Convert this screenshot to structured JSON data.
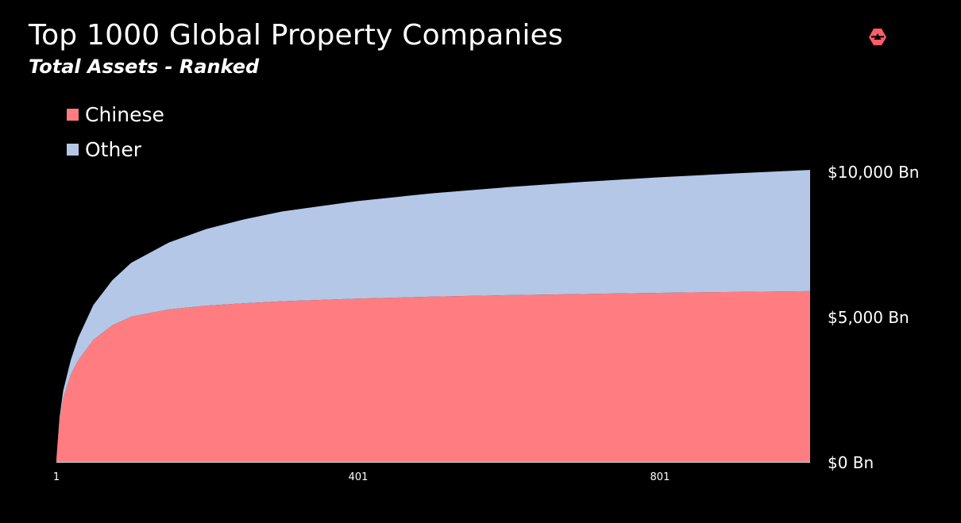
{
  "title": "Top 1000 Global Property Companies",
  "subtitle": "Total Assets - Ranked",
  "logo": {
    "icon": "brand-logo-icon",
    "color": "#ff5c6a"
  },
  "legend": [
    {
      "label": "Chinese",
      "color": "#ff7d80"
    },
    {
      "label": "Other",
      "color": "#b4c7e7"
    }
  ],
  "chart_data": {
    "type": "area",
    "stacked": true,
    "cumulative": true,
    "title": "Top 1000 Global Property Companies",
    "subtitle": "Total Assets - Ranked",
    "xlabel": "",
    "ylabel": "",
    "x_ticks": [
      "1",
      "401",
      "801"
    ],
    "y_ticks": [
      "$0 Bn",
      "$5,000 Bn",
      "$10,000 Bn"
    ],
    "y_tick_values": [
      0,
      5000,
      10000
    ],
    "ylim": [
      0,
      10000
    ],
    "xlim": [
      1,
      1000
    ],
    "grid": false,
    "legend_position": "top-left",
    "y_axis_side": "right",
    "x": [
      1,
      5,
      10,
      20,
      30,
      50,
      75,
      100,
      150,
      200,
      250,
      300,
      400,
      500,
      600,
      700,
      800,
      900,
      1000
    ],
    "series": [
      {
        "name": "Chinese",
        "color": "#ff7d80",
        "values": [
          100,
          1400,
          2200,
          3000,
          3500,
          4200,
          4700,
          5000,
          5250,
          5380,
          5460,
          5530,
          5620,
          5690,
          5740,
          5780,
          5820,
          5850,
          5880
        ]
      },
      {
        "name": "Other",
        "color": "#b4c7e7",
        "values": [
          0,
          100,
          250,
          500,
          780,
          1200,
          1550,
          1850,
          2300,
          2640,
          2890,
          3090,
          3360,
          3560,
          3720,
          3860,
          3980,
          4080,
          4170
        ]
      }
    ]
  }
}
